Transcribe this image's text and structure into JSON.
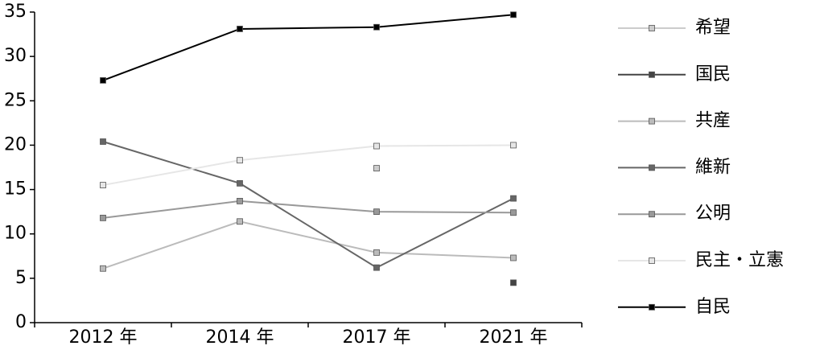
{
  "chart_data": {
    "type": "line",
    "categories": [
      "2012 年",
      "2014 年",
      "2017 年",
      "2021 年"
    ],
    "series": [
      {
        "name": "希望",
        "color": "#cccccc",
        "values": [
          null,
          null,
          17.4,
          null
        ]
      },
      {
        "name": "国民",
        "color": "#444444",
        "values": [
          null,
          null,
          null,
          4.5
        ]
      },
      {
        "name": "共産",
        "color": "#bbbbbb",
        "values": [
          6.1,
          11.4,
          7.9,
          7.3
        ]
      },
      {
        "name": "維新",
        "color": "#666666",
        "values": [
          20.4,
          15.7,
          6.2,
          14.0
        ]
      },
      {
        "name": "公明",
        "color": "#999999",
        "values": [
          11.8,
          13.7,
          12.5,
          12.4
        ]
      },
      {
        "name": "民主・立憲",
        "color": "#e6e6e6",
        "values": [
          15.5,
          18.3,
          19.9,
          20.0
        ]
      },
      {
        "name": "自民",
        "color": "#000000",
        "values": [
          27.3,
          33.1,
          33.3,
          34.7
        ]
      }
    ],
    "ylim": [
      0,
      35
    ],
    "yticks": [
      0,
      5,
      10,
      15,
      20,
      25,
      30,
      35
    ],
    "legend": "right"
  }
}
